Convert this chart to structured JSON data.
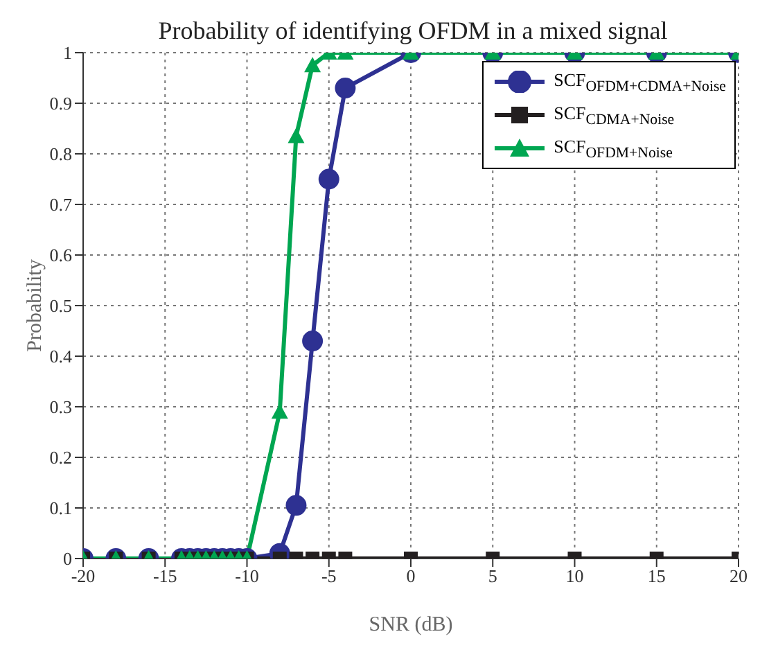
{
  "chart_data": {
    "type": "line",
    "title": "Probability of identifying OFDM in a mixed signal",
    "xlabel": "SNR (dB)",
    "ylabel": "Probability",
    "x": [
      -20,
      -18,
      -16,
      -14,
      -13.5,
      -13,
      -12.5,
      -12,
      -11.5,
      -11,
      -10.5,
      -10,
      -8,
      -7,
      -6,
      -5,
      -4,
      0,
      5,
      10,
      15,
      20
    ],
    "series": [
      {
        "name": "SCF$_{OFDM+CDMA+Noise}$",
        "color": "#2e3192",
        "marker": "circle",
        "values": [
          0,
          0,
          0,
          0,
          0,
          0,
          0,
          0,
          0,
          0,
          0,
          0,
          0.01,
          0.105,
          0.43,
          0.75,
          0.93,
          1,
          1,
          1,
          1,
          1
        ]
      },
      {
        "name": "SCF$_{CDMA+Noise}$",
        "color": "#231f20",
        "marker": "square",
        "values": [
          0,
          0,
          0,
          0,
          0,
          0,
          0,
          0,
          0,
          0,
          0,
          0,
          0,
          0,
          0,
          0,
          0,
          0,
          0,
          0,
          0,
          0
        ]
      },
      {
        "name": "SCF$_{OFDM+Noise}$",
        "color": "#00a651",
        "marker": "triangle",
        "values": [
          0,
          0,
          0,
          0,
          0,
          0,
          0,
          0,
          0,
          0,
          0,
          0,
          0.29,
          0.835,
          0.975,
          1,
          1,
          1,
          1,
          1,
          1,
          1
        ]
      }
    ],
    "xlim": [
      -20,
      20
    ],
    "xticks": [
      -20,
      -15,
      -10,
      -5,
      0,
      5,
      10,
      15,
      20
    ],
    "ylim": [
      0,
      1
    ],
    "yticks": [
      0,
      0.1,
      0.2,
      0.3,
      0.4,
      0.5,
      0.6,
      0.7,
      0.8,
      0.9,
      1
    ],
    "grid": true,
    "legend": "top right",
    "line_style": "solid"
  }
}
